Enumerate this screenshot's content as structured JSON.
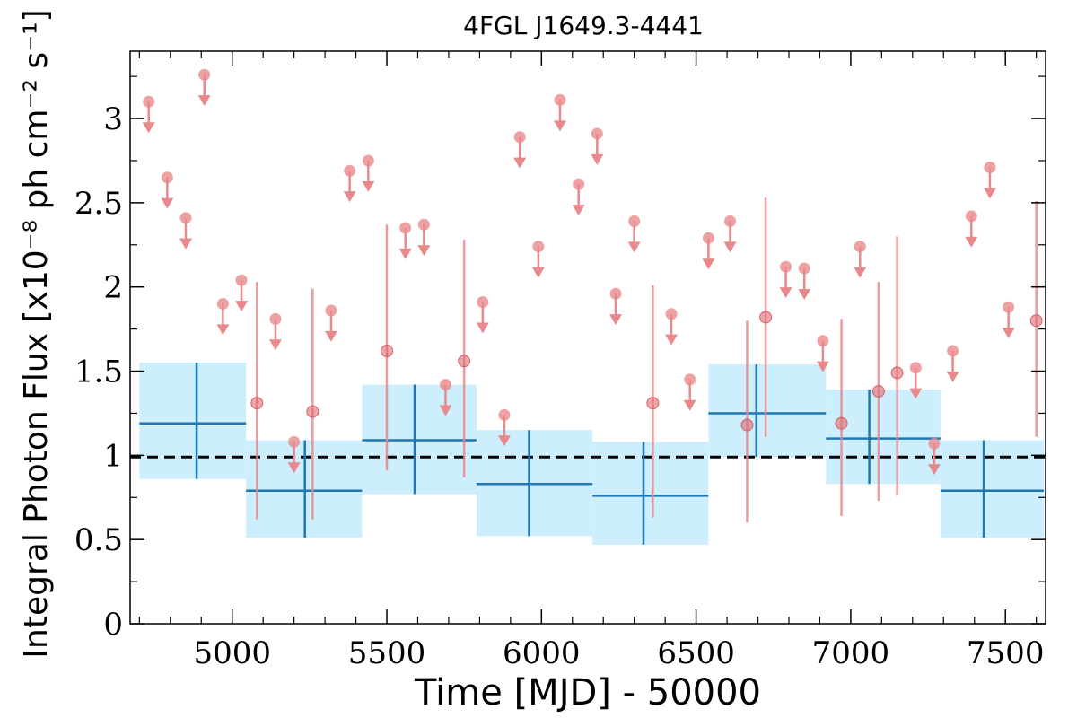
{
  "chart_data": {
    "type": "scatter",
    "title": "4FGL J1649.3-4441",
    "xlabel": "Time [MJD] - 50000",
    "ylabel": "Integral Photon Flux [x10⁻⁸ ph cm⁻² s⁻¹]",
    "xlim": [
      4670,
      7630
    ],
    "ylim": [
      0,
      3.4
    ],
    "x_ticks": [
      5000,
      5500,
      6000,
      6500,
      7000,
      7500
    ],
    "y_ticks": [
      0,
      0.5,
      1,
      1.5,
      2,
      2.5,
      3
    ],
    "x_tick_labels": [
      "5000",
      "5500",
      "6000",
      "6500",
      "7000",
      "7500"
    ],
    "y_tick_labels": [
      "0",
      "0.5",
      "1",
      "1.5",
      "2",
      "2.5",
      "3"
    ],
    "reference_line": 0.99,
    "colors": {
      "short_bins": "#e8898c",
      "long_bins": "#1f77b4",
      "long_band": "#cdeefc",
      "reference": "#000000"
    },
    "series": [
      {
        "kind": "long_bins",
        "points": [
          {
            "x0": 4700,
            "x1": 5045,
            "x": 4885,
            "y": 1.19,
            "lo": 0.86,
            "hi": 1.55
          },
          {
            "x0": 5045,
            "x1": 5420,
            "x": 5235,
            "y": 0.79,
            "lo": 0.51,
            "hi": 1.09
          },
          {
            "x0": 5420,
            "x1": 5790,
            "x": 5590,
            "y": 1.09,
            "lo": 0.77,
            "hi": 1.42
          },
          {
            "x0": 5790,
            "x1": 6165,
            "x": 5960,
            "y": 0.83,
            "lo": 0.52,
            "hi": 1.15
          },
          {
            "x0": 6165,
            "x1": 6540,
            "x": 6330,
            "y": 0.76,
            "lo": 0.47,
            "hi": 1.08
          },
          {
            "x0": 6540,
            "x1": 6920,
            "x": 6695,
            "y": 1.25,
            "lo": 0.99,
            "hi": 1.54
          },
          {
            "x0": 6920,
            "x1": 7290,
            "x": 7060,
            "y": 1.1,
            "lo": 0.83,
            "hi": 1.39
          },
          {
            "x0": 7290,
            "x1": 7660,
            "x": 7430,
            "y": 0.79,
            "lo": 0.51,
            "hi": 1.09
          }
        ]
      },
      {
        "kind": "short_bins_detections",
        "points": [
          {
            "x": 5080,
            "y": 1.31,
            "lo": 0.62,
            "hi": 2.03
          },
          {
            "x": 5260,
            "y": 1.26,
            "lo": 0.62,
            "hi": 1.99
          },
          {
            "x": 5500,
            "y": 1.62,
            "lo": 0.91,
            "hi": 2.37
          },
          {
            "x": 5750,
            "y": 1.56,
            "lo": 0.87,
            "hi": 2.28
          },
          {
            "x": 6360,
            "y": 1.31,
            "lo": 0.63,
            "hi": 2.01
          },
          {
            "x": 6665,
            "y": 1.18,
            "lo": 0.6,
            "hi": 1.8
          },
          {
            "x": 6725,
            "y": 1.82,
            "lo": 1.11,
            "hi": 2.53
          },
          {
            "x": 6970,
            "y": 1.19,
            "lo": 0.64,
            "hi": 1.81
          },
          {
            "x": 7090,
            "y": 1.38,
            "lo": 0.73,
            "hi": 2.03
          },
          {
            "x": 7150,
            "y": 1.49,
            "lo": 0.76,
            "hi": 2.3
          },
          {
            "x": 7600,
            "y": 1.8,
            "lo": 1.11,
            "hi": 2.51
          }
        ]
      },
      {
        "kind": "short_bins_upper_limits",
        "points": [
          {
            "x": 4730,
            "y": 3.1
          },
          {
            "x": 4790,
            "y": 2.65
          },
          {
            "x": 4850,
            "y": 2.41
          },
          {
            "x": 4910,
            "y": 3.26
          },
          {
            "x": 4970,
            "y": 1.9
          },
          {
            "x": 5030,
            "y": 2.04
          },
          {
            "x": 5200,
            "y": 1.08
          },
          {
            "x": 5140,
            "y": 1.81
          },
          {
            "x": 5320,
            "y": 1.86
          },
          {
            "x": 5380,
            "y": 2.69
          },
          {
            "x": 5440,
            "y": 2.75
          },
          {
            "x": 5560,
            "y": 2.35
          },
          {
            "x": 5620,
            "y": 2.37
          },
          {
            "x": 5690,
            "y": 1.42
          },
          {
            "x": 5810,
            "y": 1.91
          },
          {
            "x": 5880,
            "y": 1.24
          },
          {
            "x": 5930,
            "y": 2.89
          },
          {
            "x": 5990,
            "y": 2.24
          },
          {
            "x": 6060,
            "y": 3.11
          },
          {
            "x": 6120,
            "y": 2.61
          },
          {
            "x": 6180,
            "y": 2.91
          },
          {
            "x": 6240,
            "y": 1.96
          },
          {
            "x": 6300,
            "y": 2.39
          },
          {
            "x": 6420,
            "y": 1.84
          },
          {
            "x": 6480,
            "y": 1.45
          },
          {
            "x": 6540,
            "y": 2.29
          },
          {
            "x": 6610,
            "y": 2.39
          },
          {
            "x": 6790,
            "y": 2.12
          },
          {
            "x": 6850,
            "y": 2.11
          },
          {
            "x": 6910,
            "y": 1.68
          },
          {
            "x": 7030,
            "y": 2.24
          },
          {
            "x": 7210,
            "y": 1.52
          },
          {
            "x": 7270,
            "y": 1.07
          },
          {
            "x": 7330,
            "y": 1.62
          },
          {
            "x": 7390,
            "y": 2.42
          },
          {
            "x": 7450,
            "y": 2.71
          },
          {
            "x": 7510,
            "y": 1.88
          }
        ]
      }
    ]
  }
}
